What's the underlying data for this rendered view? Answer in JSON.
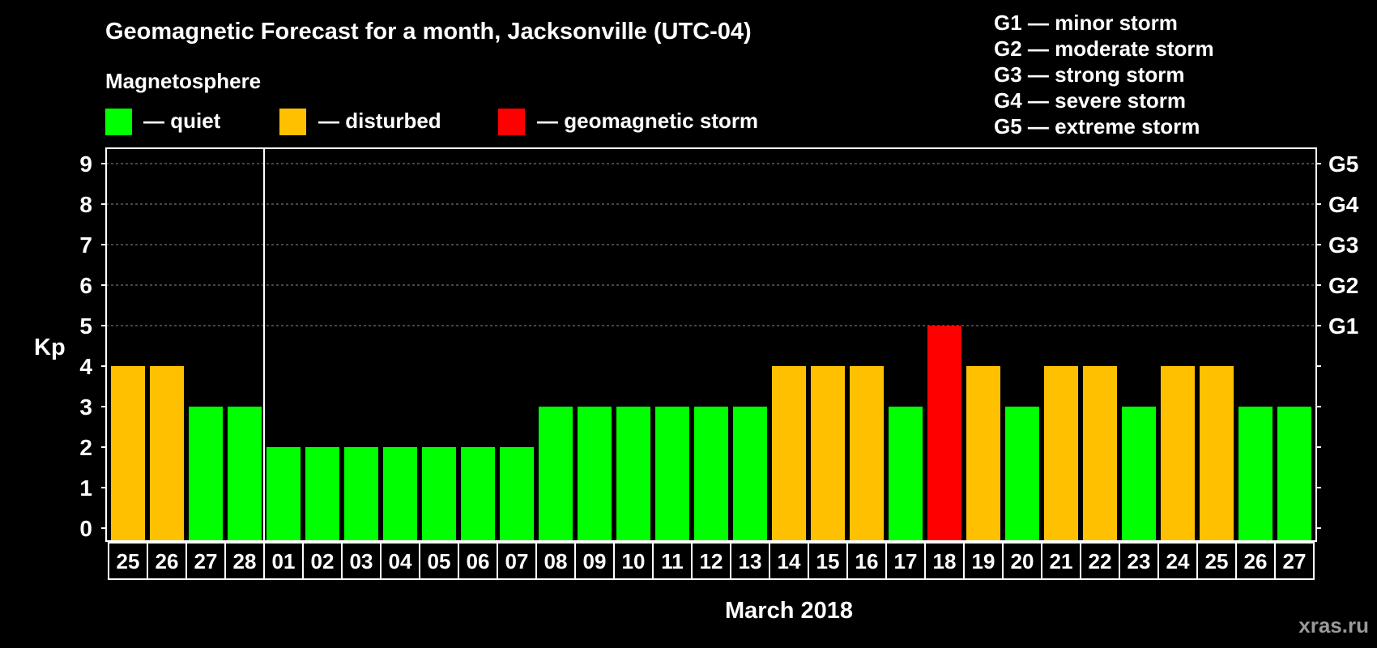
{
  "header": {
    "title": "Geomagnetic Forecast for a month, Jacksonville (UTC-04)",
    "subtitle": "Magnetosphere"
  },
  "legend": {
    "items": [
      {
        "label": "— quiet",
        "color": "#00ff00"
      },
      {
        "label": "— disturbed",
        "color": "#ffc000"
      },
      {
        "label": "— geomagnetic storm",
        "color": "#ff0000"
      }
    ]
  },
  "storm_scale": [
    "G1 — minor storm",
    "G2 — moderate storm",
    "G3 — strong storm",
    "G4 — severe storm",
    "G5 — extreme storm"
  ],
  "watermark": "xras.ru",
  "chart_data": {
    "type": "bar",
    "title": "Geomagnetic Forecast for a month, Jacksonville (UTC-04)",
    "ylabel": "Kp",
    "xlabel": "March 2018",
    "ylim": [
      0,
      9
    ],
    "yticks": [
      "0",
      "1",
      "2",
      "3",
      "4",
      "5",
      "6",
      "7",
      "8",
      "9"
    ],
    "right_axis_labels": [
      {
        "kp": 5,
        "label": "G1"
      },
      {
        "kp": 6,
        "label": "G2"
      },
      {
        "kp": 7,
        "label": "G3"
      },
      {
        "kp": 8,
        "label": "G4"
      },
      {
        "kp": 9,
        "label": "G5"
      }
    ],
    "month_divider_after_index": 3,
    "grid": "dashed horizontal",
    "categories": [
      "25",
      "26",
      "27",
      "28",
      "01",
      "02",
      "03",
      "04",
      "05",
      "06",
      "07",
      "08",
      "09",
      "10",
      "11",
      "12",
      "13",
      "14",
      "15",
      "16",
      "17",
      "18",
      "19",
      "20",
      "21",
      "22",
      "23",
      "24",
      "25",
      "26",
      "27"
    ],
    "values": [
      4,
      4,
      3,
      3,
      2,
      2,
      2,
      2,
      2,
      2,
      2,
      3,
      3,
      3,
      3,
      3,
      3,
      4,
      4,
      4,
      3,
      5,
      4,
      3,
      4,
      4,
      3,
      4,
      4,
      3,
      3
    ],
    "level_colors": {
      "quiet": "#00ff00",
      "disturbed": "#ffc000",
      "storm": "#ff0000"
    }
  }
}
